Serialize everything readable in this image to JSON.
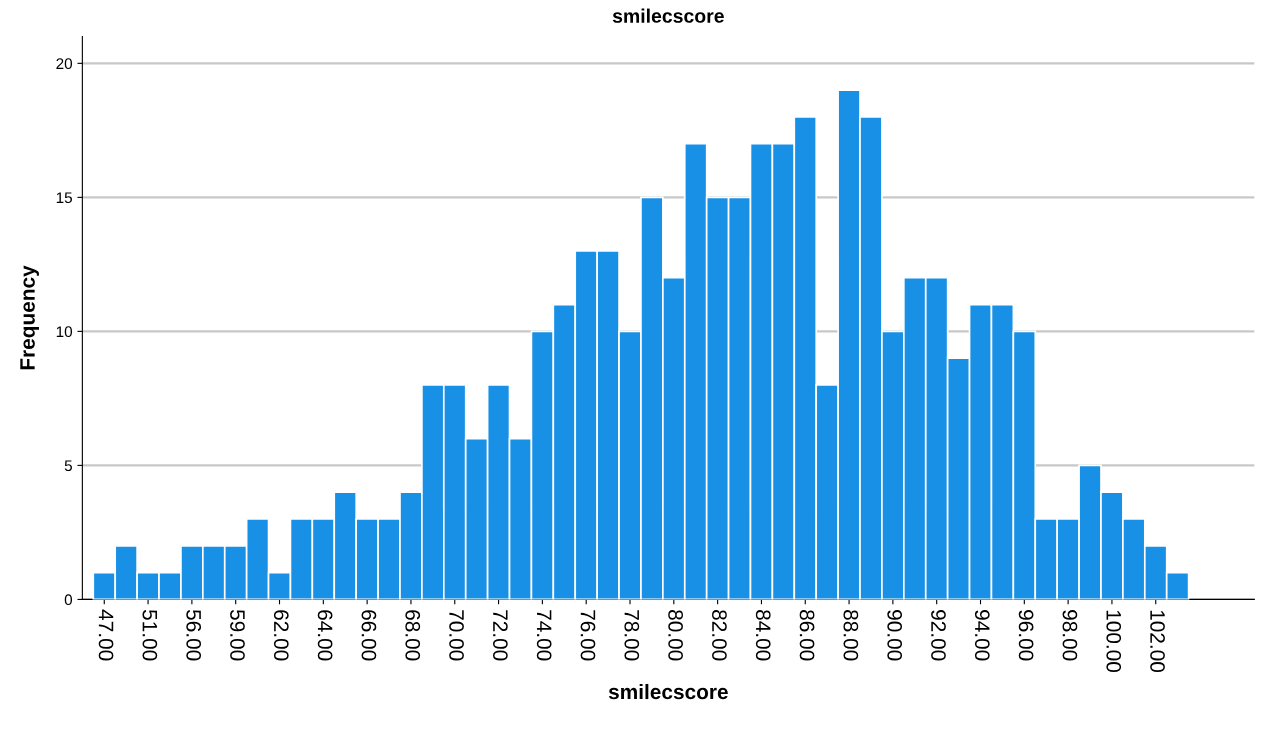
{
  "chart_data": {
    "type": "bar",
    "title": "smilecscore",
    "xlabel": "smilecscore",
    "ylabel": "Frequency",
    "categories": [
      "47.00",
      null,
      "51.00",
      null,
      "56.00",
      null,
      "59.00",
      null,
      "62.00",
      null,
      "64.00",
      null,
      "66.00",
      null,
      "68.00",
      null,
      "70.00",
      null,
      "72.00",
      null,
      "74.00",
      null,
      "76.00",
      null,
      "78.00",
      null,
      "80.00",
      null,
      "82.00",
      null,
      "84.00",
      null,
      "86.00",
      null,
      "88.00",
      null,
      "90.00",
      null,
      "92.00",
      null,
      "94.00",
      null,
      "96.00",
      null,
      "98.00",
      null,
      "100.00",
      null,
      "102.00",
      null
    ],
    "values": [
      1,
      2,
      1,
      1,
      2,
      2,
      2,
      3,
      1,
      3,
      3,
      4,
      3,
      3,
      4,
      8,
      8,
      6,
      8,
      6,
      10,
      11,
      13,
      13,
      10,
      15,
      12,
      17,
      15,
      15,
      17,
      17,
      18,
      8,
      19,
      18,
      10,
      12,
      12,
      9,
      11,
      11,
      10,
      3,
      3,
      5,
      4,
      3,
      2,
      1
    ],
    "color": "#1790e6",
    "ylim": [
      0,
      21
    ],
    "yticks": [
      0,
      5,
      10,
      15,
      20
    ],
    "grid": "y"
  }
}
